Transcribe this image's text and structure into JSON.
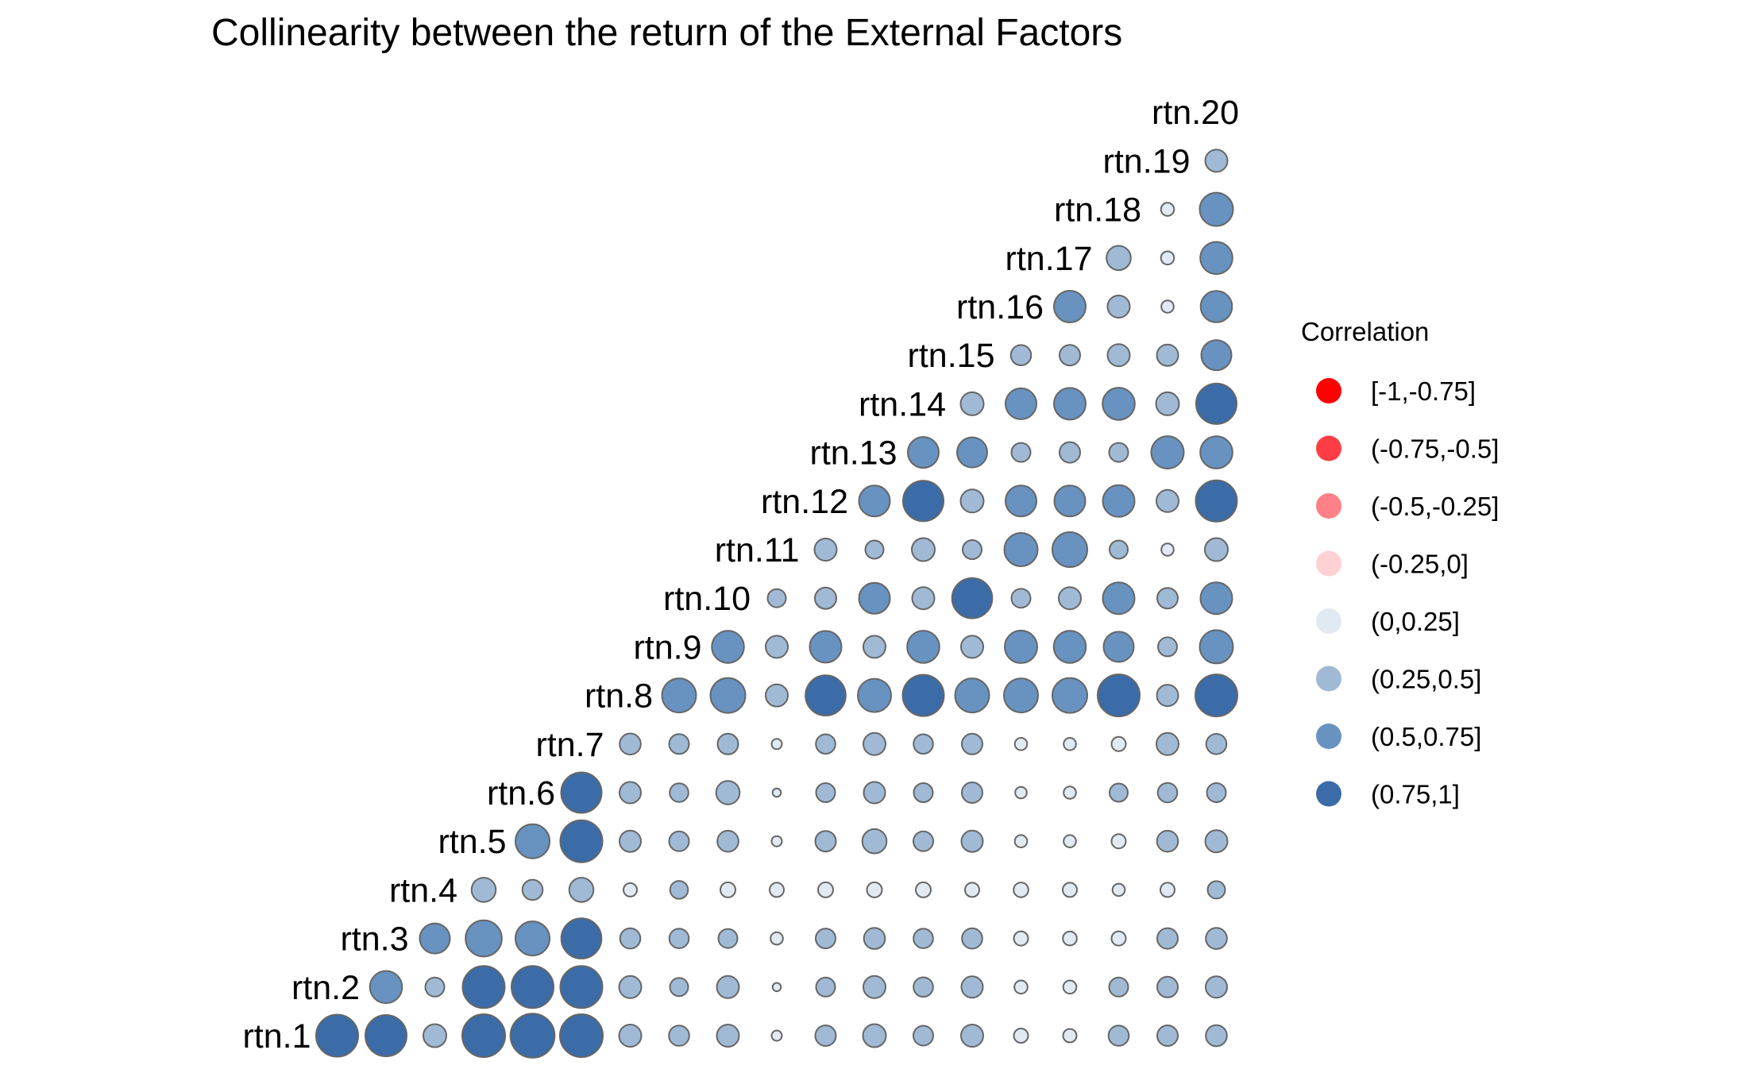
{
  "chart_data": {
    "type": "scatter",
    "title": "Collinearity between the return of the External Factors",
    "variables": [
      "rtn.1",
      "rtn.2",
      "rtn.3",
      "rtn.4",
      "rtn.5",
      "rtn.6",
      "rtn.7",
      "rtn.8",
      "rtn.9",
      "rtn.10",
      "rtn.11",
      "rtn.12",
      "rtn.13",
      "rtn.14",
      "rtn.15",
      "rtn.16",
      "rtn.17",
      "rtn.18",
      "rtn.19",
      "rtn.20"
    ],
    "matrix_layout": "lower-triangle (row label i, columns j = i+1 .. 20)",
    "legend": {
      "title": "Correlation",
      "placement": "right",
      "bins": [
        {
          "label": "[-1,-0.75]",
          "color": "#ff0000"
        },
        {
          "label": "(-0.75,-0.5]",
          "color": "#ff3d45"
        },
        {
          "label": "(-0.5,-0.25]",
          "color": "#ff8086"
        },
        {
          "label": "(-0.25,0]",
          "color": "#ffd1d4"
        },
        {
          "label": "(0,0.25]",
          "color": "#e1e9f2"
        },
        {
          "label": "(0.25,0.5]",
          "color": "#a0bad6"
        },
        {
          "label": "(0.5,0.75]",
          "color": "#6892c0"
        },
        {
          "label": "(0.75,1]",
          "color": "#3b6ca8"
        }
      ]
    },
    "correlations": [
      [
        0.9,
        0.88,
        0.42,
        0.92,
        0.95,
        0.92,
        0.4,
        0.35,
        0.4,
        0.1,
        0.36,
        0.42,
        0.34,
        0.4,
        0.2,
        0.18,
        0.35,
        0.36,
        0.37
      ],
      [
        0.65,
        0.32,
        0.9,
        0.9,
        0.9,
        0.4,
        0.3,
        0.4,
        0.05,
        0.32,
        0.4,
        0.33,
        0.38,
        0.17,
        0.17,
        0.32,
        0.36,
        0.38
      ],
      [
        0.6,
        0.75,
        0.7,
        0.85,
        0.35,
        0.33,
        0.32,
        0.15,
        0.34,
        0.37,
        0.33,
        0.35,
        0.2,
        0.19,
        0.2,
        0.36,
        0.37
      ],
      [
        0.45,
        0.35,
        0.45,
        0.18,
        0.29,
        0.22,
        0.2,
        0.22,
        0.22,
        0.22,
        0.2,
        0.21,
        0.2,
        0.15,
        0.2,
        0.28
      ],
      [
        0.7,
        0.9,
        0.38,
        0.34,
        0.37,
        0.1,
        0.36,
        0.45,
        0.34,
        0.38,
        0.15,
        0.15,
        0.2,
        0.37,
        0.4
      ],
      [
        0.86,
        0.38,
        0.31,
        0.43,
        0.05,
        0.32,
        0.38,
        0.32,
        0.36,
        0.13,
        0.15,
        0.3,
        0.33,
        0.32
      ],
      [
        0.37,
        0.34,
        0.36,
        0.1,
        0.33,
        0.4,
        0.33,
        0.36,
        0.15,
        0.15,
        0.2,
        0.4,
        0.35
      ],
      [
        0.7,
        0.72,
        0.4,
        0.85,
        0.68,
        0.88,
        0.7,
        0.7,
        0.72,
        0.9,
        0.38,
        0.9
      ],
      [
        0.65,
        0.4,
        0.64,
        0.4,
        0.65,
        0.4,
        0.66,
        0.65,
        0.6,
        0.32,
        0.68
      ],
      [
        0.3,
        0.38,
        0.62,
        0.4,
        0.85,
        0.32,
        0.4,
        0.64,
        0.36,
        0.64
      ],
      [
        0.4,
        0.3,
        0.42,
        0.32,
        0.68,
        0.72,
        0.3,
        0.15,
        0.42
      ],
      [
        0.62,
        0.86,
        0.42,
        0.62,
        0.62,
        0.64,
        0.4,
        0.88
      ],
      [
        0.62,
        0.6,
        0.32,
        0.36,
        0.32,
        0.66,
        0.65
      ],
      [
        0.42,
        0.62,
        0.64,
        0.65,
        0.42,
        0.86
      ],
      [
        0.35,
        0.36,
        0.4,
        0.38,
        0.6
      ],
      [
        0.64,
        0.4,
        0.15,
        0.63
      ],
      [
        0.45,
        0.17,
        0.65
      ],
      [
        0.17,
        0.68
      ],
      [
        0.4
      ]
    ]
  }
}
